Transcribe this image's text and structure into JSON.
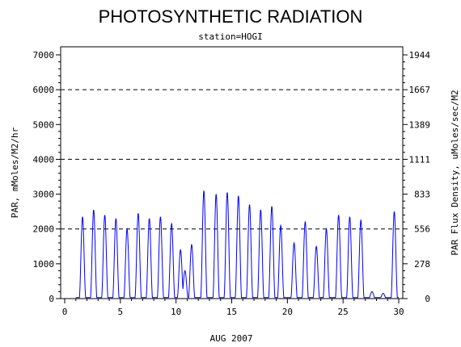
{
  "chart_data": {
    "type": "line",
    "title": "PHOTOSYNTHETIC RADIATION",
    "subtitle": "station=HOGI",
    "xlabel": "AUG 2007",
    "ylabel_left": "PAR, mMoles/M2/hr",
    "ylabel_right": "PAR Flux Density, uMoles/sec/M2",
    "xlim": [
      0,
      30
    ],
    "ylim": [
      0,
      7000
    ],
    "x_ticks": [
      0,
      5,
      10,
      15,
      20,
      25,
      30
    ],
    "y_ticks_left": [
      0,
      1000,
      2000,
      3000,
      4000,
      5000,
      6000,
      7000
    ],
    "y_ticks_right": [
      "0",
      "278",
      "556",
      "833",
      "1111",
      "1389",
      "1667",
      "1944"
    ],
    "reference_lines": [
      2000,
      4000,
      6000
    ],
    "series_color": "#0000ff",
    "daily_peaks": [
      {
        "day": 1.6,
        "peak": 2350
      },
      {
        "day": 2.6,
        "peak": 2550
      },
      {
        "day": 3.6,
        "peak": 2400
      },
      {
        "day": 4.6,
        "peak": 2300
      },
      {
        "day": 5.6,
        "peak": 2000
      },
      {
        "day": 6.6,
        "peak": 2450
      },
      {
        "day": 7.6,
        "peak": 2300
      },
      {
        "day": 8.6,
        "peak": 2350
      },
      {
        "day": 9.6,
        "peak": 2150
      },
      {
        "day": 10.4,
        "peak": 1400
      },
      {
        "day": 10.8,
        "peak": 800
      },
      {
        "day": 11.4,
        "peak": 1550
      },
      {
        "day": 12.5,
        "peak": 3100
      },
      {
        "day": 13.6,
        "peak": 3000
      },
      {
        "day": 14.6,
        "peak": 3050
      },
      {
        "day": 15.6,
        "peak": 2950
      },
      {
        "day": 16.6,
        "peak": 2700
      },
      {
        "day": 17.6,
        "peak": 2550
      },
      {
        "day": 18.6,
        "peak": 2650
      },
      {
        "day": 19.4,
        "peak": 2100
      },
      {
        "day": 20.6,
        "peak": 1600
      },
      {
        "day": 21.6,
        "peak": 2200
      },
      {
        "day": 22.6,
        "peak": 1500
      },
      {
        "day": 23.5,
        "peak": 2000
      },
      {
        "day": 24.6,
        "peak": 2400
      },
      {
        "day": 25.6,
        "peak": 2350
      },
      {
        "day": 26.6,
        "peak": 2250
      },
      {
        "day": 27.6,
        "peak": 200
      },
      {
        "day": 28.6,
        "peak": 150
      },
      {
        "day": 29.6,
        "peak": 2500
      }
    ]
  }
}
